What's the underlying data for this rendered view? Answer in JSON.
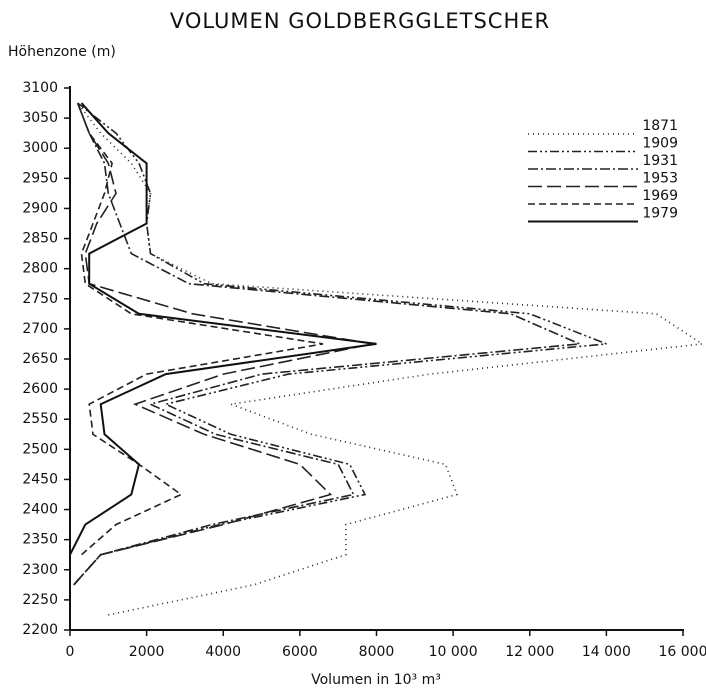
{
  "chart_data": {
    "type": "line",
    "title": "VOLUMEN GOLDBERGGLETSCHER",
    "ylabel": "Höhenzone (m)",
    "xlabel": "Volumen in 10³ m³",
    "y": [
      2225,
      2275,
      2325,
      2375,
      2425,
      2475,
      2525,
      2575,
      2625,
      2675,
      2725,
      2775,
      2825,
      2875,
      2925,
      2975,
      3025,
      3075
    ],
    "series": [
      {
        "name": "1871",
        "color": "#222",
        "dash": "1,4",
        "values": [
          1000,
          4800,
          7200,
          7200,
          10100,
          9800,
          6300,
          4200,
          9400,
          16500,
          15300,
          3700,
          2100,
          2000,
          2100,
          1600,
          800,
          200
        ]
      },
      {
        "name": "1909",
        "color": "#222",
        "dash": "9,3,2,3,2,3",
        "values": [
          null,
          100,
          800,
          3900,
          7700,
          7300,
          4200,
          2500,
          5700,
          14000,
          12000,
          3500,
          2100,
          2000,
          2100,
          1800,
          1200,
          200
        ]
      },
      {
        "name": "1931",
        "color": "#222",
        "dash": "10,3,2,3",
        "values": [
          null,
          100,
          800,
          3700,
          7400,
          7000,
          3800,
          2100,
          5000,
          13300,
          11500,
          3100,
          1600,
          1300,
          1000,
          900,
          500,
          200
        ]
      },
      {
        "name": "1953",
        "color": "#222",
        "dash": "14,5",
        "values": [
          null,
          100,
          800,
          4000,
          6800,
          6000,
          3500,
          1700,
          4000,
          7900,
          3200,
          500,
          400,
          700,
          1200,
          1000,
          500,
          200
        ]
      },
      {
        "name": "1969",
        "color": "#222",
        "dash": "7,4",
        "values": [
          null,
          null,
          300,
          1200,
          2900,
          1800,
          600,
          500,
          2000,
          6600,
          1600,
          400,
          300,
          600,
          900,
          1100,
          500,
          200
        ]
      },
      {
        "name": "1979",
        "color": "#111",
        "dash": "none",
        "values": [
          null,
          null,
          0,
          400,
          1600,
          1800,
          900,
          800,
          2500,
          8000,
          1800,
          500,
          500,
          2000,
          2000,
          2000,
          1000,
          300
        ]
      }
    ],
    "xlim": [
      0,
      16000
    ],
    "xticks": [
      0,
      2000,
      4000,
      6000,
      8000,
      {
        "value": 10000,
        "label": "10 000"
      },
      {
        "value": 12000,
        "label": "12 000"
      },
      {
        "value": 14000,
        "label": "14 000"
      },
      {
        "value": 16000,
        "label": "16 000"
      }
    ],
    "ylim": [
      2200,
      3100
    ],
    "yticks": [
      2200,
      2250,
      2300,
      2350,
      2400,
      2450,
      2500,
      2550,
      2600,
      2650,
      2700,
      2750,
      2800,
      2850,
      2900,
      2950,
      3000,
      3050,
      3100
    ],
    "legend": "upper right"
  }
}
